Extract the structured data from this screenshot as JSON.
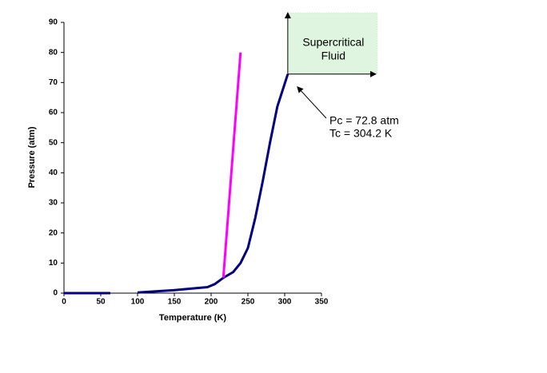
{
  "chart_data": {
    "type": "line",
    "xlabel": "Temperature (K)",
    "ylabel": "Pressure (atm)",
    "xlim": [
      0,
      350
    ],
    "xticks": [
      0,
      50,
      100,
      150,
      200,
      250,
      300,
      350
    ],
    "ylim": [
      0,
      90
    ],
    "yticks": [
      0,
      10,
      20,
      30,
      40,
      50,
      60,
      70,
      80,
      90
    ],
    "series": [
      {
        "color": "#000080",
        "x": [
          0,
          63,
          89,
          100,
          150,
          195,
          205,
          216.6,
          230,
          240,
          250,
          260,
          270,
          280,
          290,
          304.2
        ],
        "values": [
          0,
          0,
          null,
          0.2,
          1,
          2,
          3,
          5.1,
          7,
          10,
          15,
          25,
          37,
          50,
          62,
          72.8
        ]
      },
      {
        "color": "#ff00ff",
        "x": [
          216.6,
          240
        ],
        "values": [
          5.1,
          80
        ]
      }
    ],
    "region_label": [
      "Supercritical",
      "Fluid"
    ],
    "region_color": "#e0f5e0",
    "point_label": [
      "Pc = 72.8 atm",
      "Tc = 304.2 K"
    ]
  }
}
